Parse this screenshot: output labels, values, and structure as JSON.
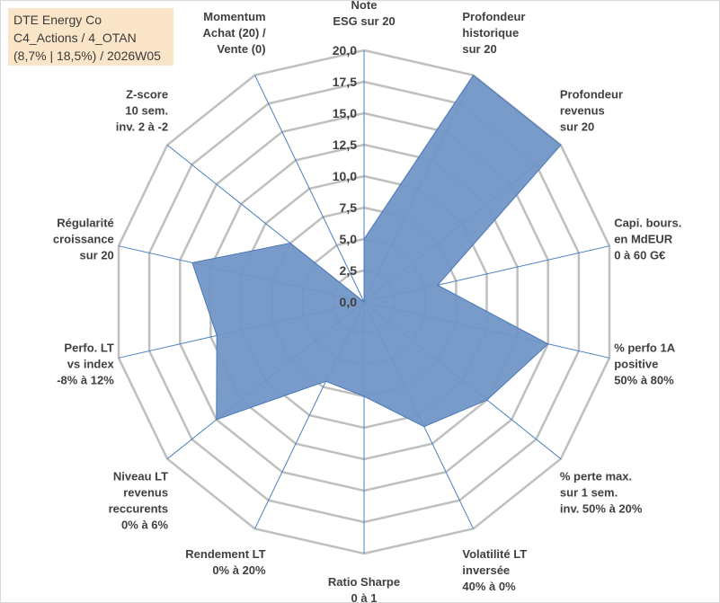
{
  "title": {
    "line1": "DTE Energy Co",
    "line2": "C4_Actions / 4_OTAN",
    "line3": "(8,7% | 18,5%) / 2026W05"
  },
  "chart_data": {
    "type": "radar",
    "r_min": 0,
    "r_max": 20,
    "ticks": [
      "0,0",
      "2,5",
      "5,0",
      "7,5",
      "10,0",
      "12,5",
      "15,0",
      "17,5",
      "20,0"
    ],
    "tick_values": [
      0,
      2.5,
      5,
      7.5,
      10,
      12.5,
      15,
      17.5,
      20
    ],
    "axes": [
      {
        "label": [
          "Note",
          "ESG sur 20"
        ],
        "value": 5.0
      },
      {
        "label": [
          "Profondeur",
          "historique",
          "sur 20"
        ],
        "value": 20.0
      },
      {
        "label": [
          "Profondeur",
          "revenus",
          "sur 20"
        ],
        "value": 20.0
      },
      {
        "label": [
          "Capi. bours.",
          "en MdEUR",
          "0 à 60 G€"
        ],
        "value": 6.0
      },
      {
        "label": [
          "% perfo 1A",
          "positive",
          "50% à 80%"
        ],
        "value": 15.0
      },
      {
        "label": [
          "% perte max.",
          "sur 1 sem.",
          "inv. 50% à 20%"
        ],
        "value": 12.5
      },
      {
        "label": [
          "Volatilité LT",
          "inversée",
          "40% à 0%"
        ],
        "value": 11.0
      },
      {
        "label": [
          "Ratio Sharpe",
          "0 à 1"
        ],
        "value": 7.5
      },
      {
        "label": [
          "Rendement LT",
          "0% à 20%"
        ],
        "value": 7.0
      },
      {
        "label": [
          "Niveau LT",
          "revenus",
          "reccurents",
          "0% à 6%"
        ],
        "value": 15.0
      },
      {
        "label": [
          "Perfo. LT",
          "vs index",
          "-8% à 12%"
        ],
        "value": 12.0
      },
      {
        "label": [
          "Régularité",
          "croissance",
          "sur 20"
        ],
        "value": 14.0
      },
      {
        "label": [
          "Z-score",
          "10 sem.",
          "inv. 2 à -2"
        ],
        "value": 7.5
      },
      {
        "label": [
          "Momentum",
          "Achat (20) /",
          "Vente (0)"
        ],
        "value": 0.0
      }
    ],
    "colors": {
      "fill": "#7196c6",
      "stroke": "#4a78b8",
      "grid": "#bfbfbf",
      "spoke": "#4a7fc1"
    }
  }
}
